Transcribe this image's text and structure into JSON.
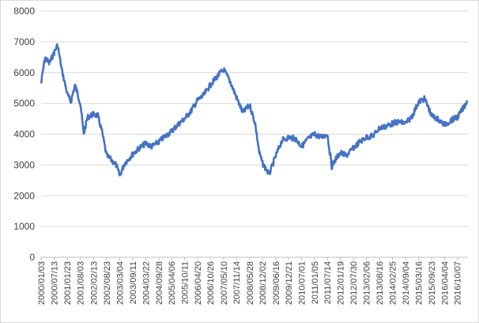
{
  "chart_data": {
    "type": "line",
    "title": "",
    "xlabel": "",
    "ylabel": "",
    "ylim": [
      0,
      8000
    ],
    "yticks": [
      "0",
      "1000",
      "2000",
      "3000",
      "4000",
      "5000",
      "6000",
      "7000",
      "8000"
    ],
    "grid": true,
    "legend": "none",
    "x_tick_labels": [
      "2000/01/03",
      "2000/07/13",
      "2001/01/23",
      "2001/08/03",
      "2002/02/13",
      "2002/08/23",
      "2003/03/04",
      "2003/09/11",
      "2004/03/22",
      "2004/09/28",
      "2005/04/06",
      "2005/10/11",
      "2006/04/20",
      "2006/10/26",
      "2007/05/10",
      "2007/11/14",
      "2008/05/28",
      "2008/12/02",
      "2009/06/16",
      "2009/12/21",
      "2010/07/01",
      "2011/01/05",
      "2011/07/14",
      "2012/01/19",
      "2012/07/30",
      "2013/02/06",
      "2013/08/16",
      "2014/02/25",
      "2014/09/04",
      "2015/03/16",
      "2015/09/23",
      "2016/04/04",
      "2016/10/07"
    ],
    "series": [
      {
        "color": "#4472c4",
        "x": [
          "2000/01/03",
          "2000/03/01",
          "2000/05/01",
          "2000/07/13",
          "2000/09/01",
          "2000/11/01",
          "2001/01/23",
          "2001/03/15",
          "2001/05/15",
          "2001/08/03",
          "2001/09/20",
          "2001/11/15",
          "2002/02/13",
          "2002/04/15",
          "2002/06/15",
          "2002/08/23",
          "2002/10/15",
          "2003/01/10",
          "2003/03/04",
          "2003/05/15",
          "2003/09/11",
          "2003/12/15",
          "2004/03/22",
          "2004/06/15",
          "2004/09/28",
          "2004/12/15",
          "2005/04/06",
          "2005/07/01",
          "2005/10/11",
          "2006/01/15",
          "2006/04/20",
          "2006/07/15",
          "2006/10/26",
          "2007/02/15",
          "2007/05/10",
          "2007/08/15",
          "2007/11/14",
          "2008/02/15",
          "2008/05/28",
          "2008/08/15",
          "2008/10/15",
          "2008/12/02",
          "2009/03/10",
          "2009/06/16",
          "2009/09/15",
          "2009/12/21",
          "2010/04/01",
          "2010/07/01",
          "2010/10/01",
          "2011/01/05",
          "2011/04/15",
          "2011/07/14",
          "2011/09/15",
          "2011/11/15",
          "2012/01/19",
          "2012/04/15",
          "2012/07/30",
          "2012/11/01",
          "2013/02/06",
          "2013/05/15",
          "2013/08/16",
          "2013/11/15",
          "2014/02/25",
          "2014/06/01",
          "2014/09/04",
          "2014/12/01",
          "2015/03/16",
          "2015/06/15",
          "2015/09/23",
          "2015/12/15",
          "2016/04/04",
          "2016/07/01",
          "2016/10/07",
          "2017/01/15",
          "2017/03/01"
        ],
        "values": [
          5650,
          6500,
          6300,
          6650,
          6900,
          6100,
          5300,
          5050,
          5600,
          5000,
          4000,
          4550,
          4650,
          4600,
          4100,
          3300,
          3200,
          3000,
          2650,
          3050,
          3350,
          3550,
          3700,
          3600,
          3750,
          3900,
          4100,
          4300,
          4500,
          4750,
          5100,
          5250,
          5600,
          5900,
          6100,
          5700,
          5200,
          4700,
          4950,
          4350,
          3400,
          3050,
          2700,
          3300,
          3800,
          3900,
          3850,
          3600,
          3850,
          4000,
          3900,
          4000,
          2950,
          3200,
          3400,
          3300,
          3550,
          3750,
          3900,
          3950,
          4200,
          4250,
          4350,
          4400,
          4350,
          4550,
          5050,
          5150,
          4600,
          4500,
          4300,
          4450,
          4550,
          4900,
          5100
        ]
      }
    ]
  }
}
